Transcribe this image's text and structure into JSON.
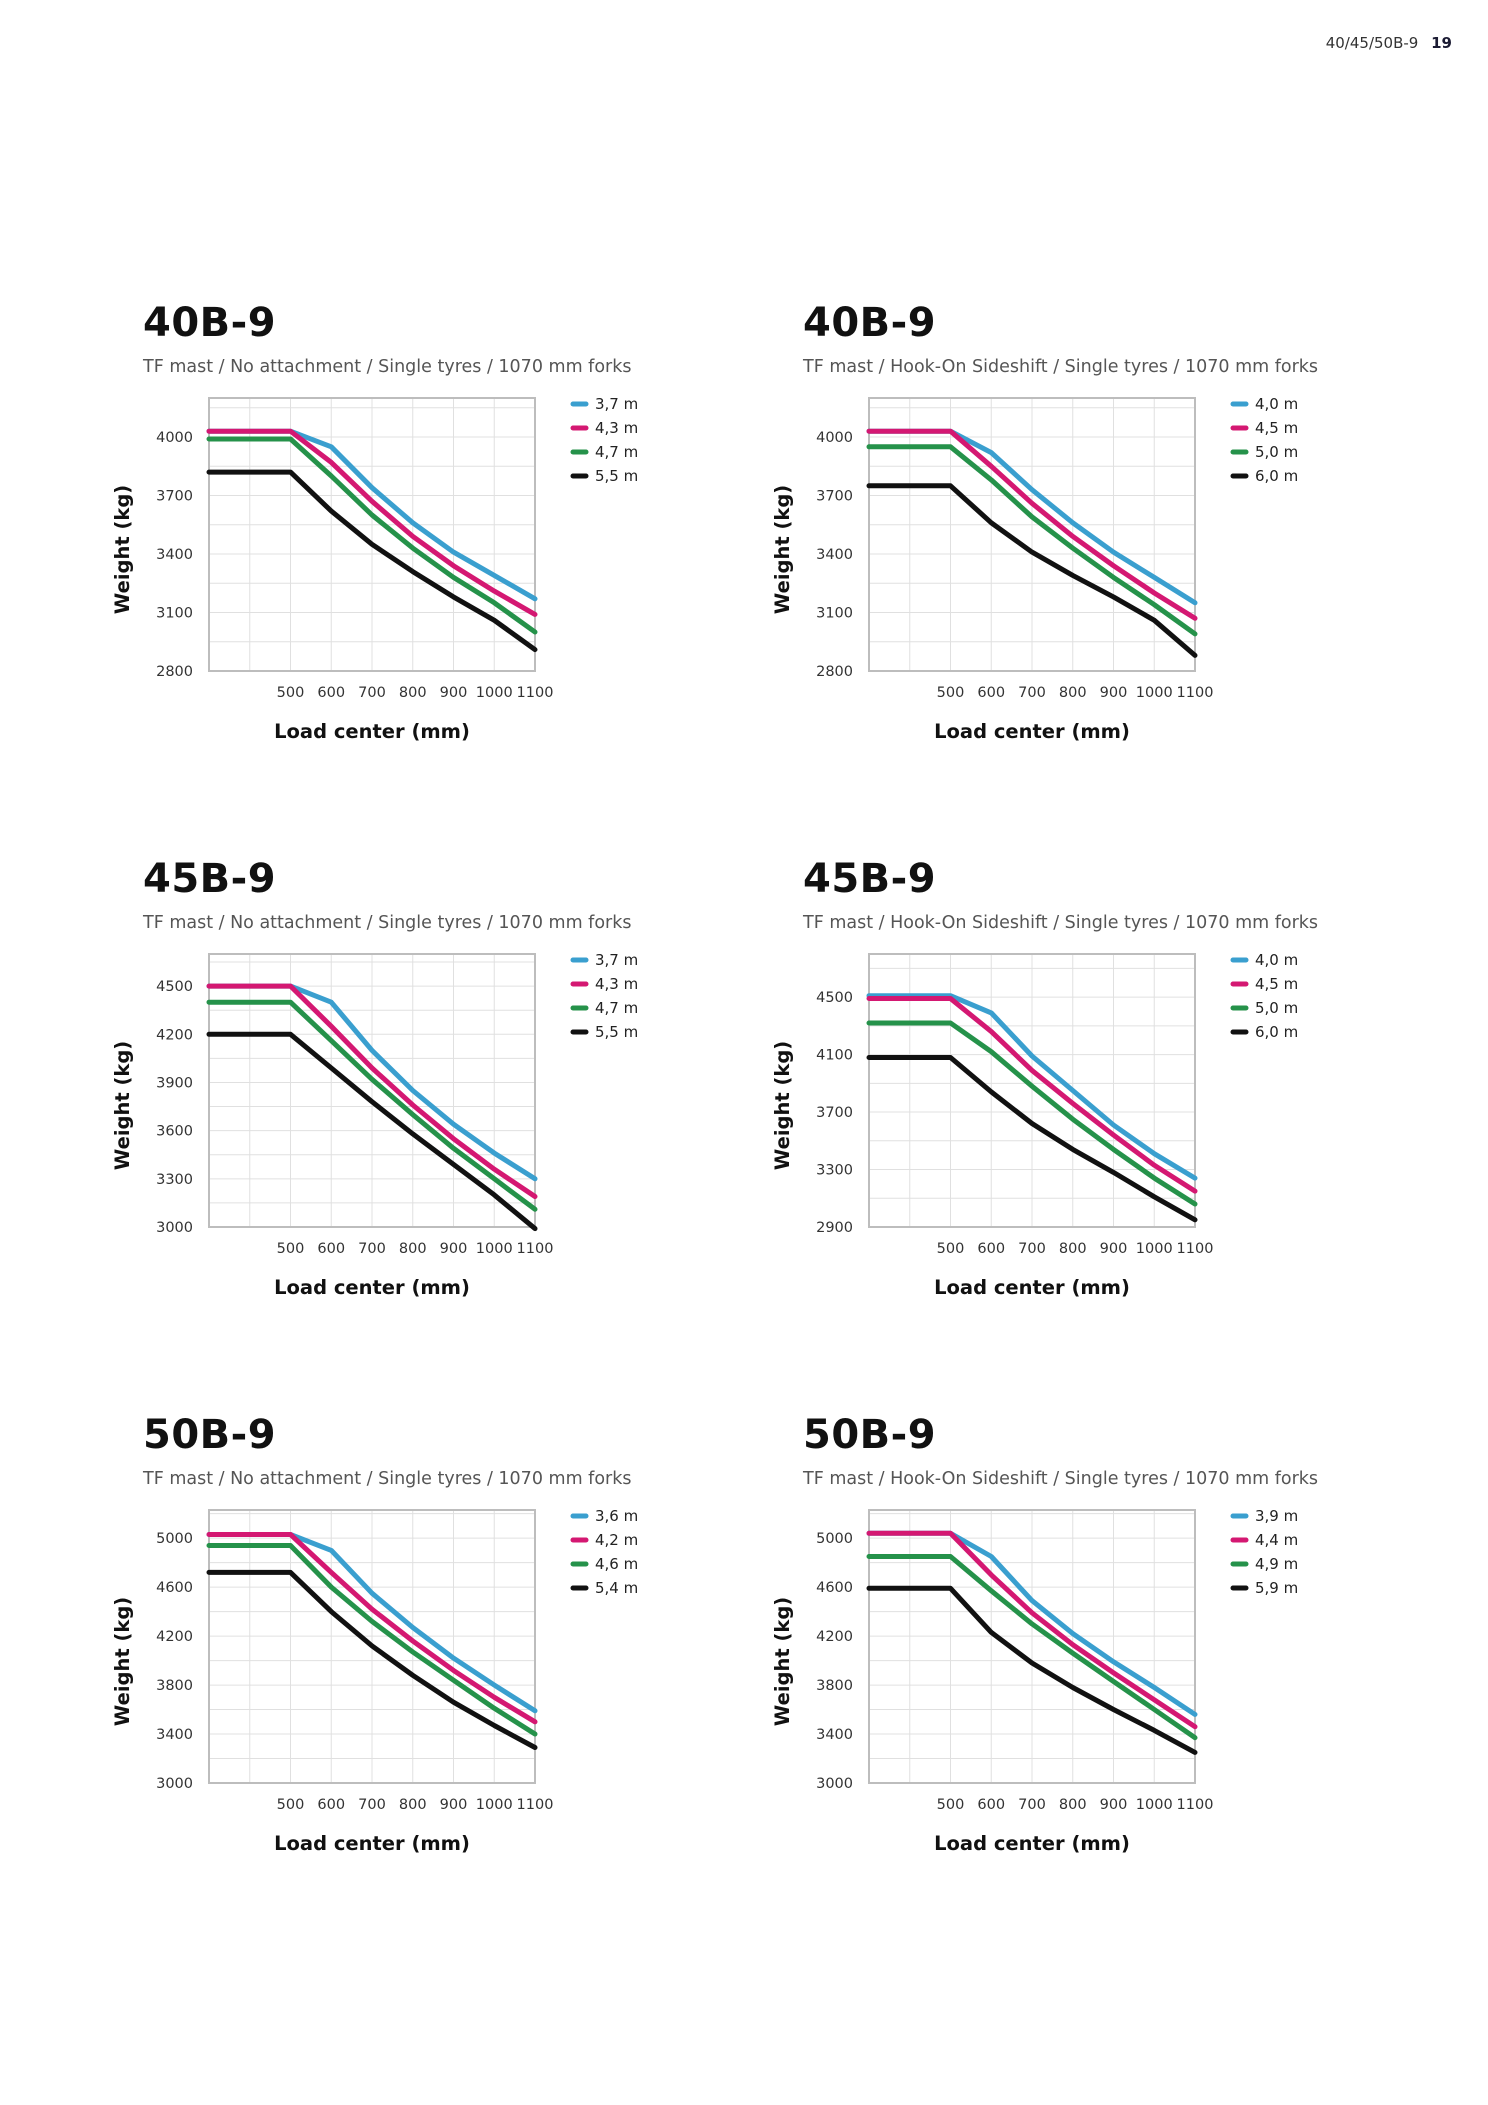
{
  "header": {
    "model_range": "40/45/50B-9",
    "page_number": "19"
  },
  "palette": {
    "blue": "#3a9fcf",
    "magenta": "#d41872",
    "green": "#25924a",
    "black": "#111111",
    "grid": "#e0e0e0",
    "frame": "#bdbdbd"
  },
  "chart_data": [
    {
      "type": "line",
      "title": "40B-9",
      "subtitle": "TF mast / No attachment / Single tyres / 1070 mm forks",
      "xlabel": "Load center (mm)",
      "ylabel": "Weight (kg)",
      "xticks": [
        500,
        600,
        700,
        800,
        900,
        1000,
        1100
      ],
      "yticks": [
        2800,
        3100,
        3400,
        3700,
        4000
      ],
      "ylim": [
        2800,
        4200
      ],
      "x": [
        300,
        500,
        600,
        700,
        800,
        900,
        1000,
        1100
      ],
      "series": [
        {
          "name": "3,7 m",
          "color": "#3a9fcf",
          "values": [
            4030,
            4030,
            3950,
            3740,
            3560,
            3410,
            3290,
            3170
          ]
        },
        {
          "name": "4,3 m",
          "color": "#d41872",
          "values": [
            4030,
            4030,
            3870,
            3670,
            3490,
            3340,
            3210,
            3090
          ]
        },
        {
          "name": "4,7 m",
          "color": "#25924a",
          "values": [
            3990,
            3990,
            3800,
            3600,
            3430,
            3280,
            3150,
            3000
          ]
        },
        {
          "name": "5,5 m",
          "color": "#111111",
          "values": [
            3820,
            3820,
            3620,
            3450,
            3310,
            3180,
            3060,
            2910
          ]
        }
      ]
    },
    {
      "type": "line",
      "title": "40B-9",
      "subtitle": "TF mast / Hook-On Sideshift / Single tyres / 1070 mm forks",
      "xlabel": "Load center (mm)",
      "ylabel": "Weight (kg)",
      "xticks": [
        500,
        600,
        700,
        800,
        900,
        1000,
        1100
      ],
      "yticks": [
        2800,
        3100,
        3400,
        3700,
        4000
      ],
      "ylim": [
        2800,
        4200
      ],
      "x": [
        300,
        500,
        600,
        700,
        800,
        900,
        1000,
        1100
      ],
      "series": [
        {
          "name": "4,0 m",
          "color": "#3a9fcf",
          "values": [
            4030,
            4030,
            3920,
            3730,
            3560,
            3410,
            3280,
            3150
          ]
        },
        {
          "name": "4,5 m",
          "color": "#d41872",
          "values": [
            4030,
            4030,
            3850,
            3660,
            3490,
            3340,
            3200,
            3070
          ]
        },
        {
          "name": "5,0 m",
          "color": "#25924a",
          "values": [
            3950,
            3950,
            3780,
            3590,
            3430,
            3280,
            3140,
            2990
          ]
        },
        {
          "name": "6,0 m",
          "color": "#111111",
          "values": [
            3750,
            3750,
            3560,
            3410,
            3290,
            3180,
            3060,
            2880
          ]
        }
      ]
    },
    {
      "type": "line",
      "title": "45B-9",
      "subtitle": "TF mast / No attachment / Single tyres / 1070 mm forks",
      "xlabel": "Load center (mm)",
      "ylabel": "Weight (kg)",
      "xticks": [
        500,
        600,
        700,
        800,
        900,
        1000,
        1100
      ],
      "yticks": [
        3000,
        3300,
        3600,
        3900,
        4200,
        4500
      ],
      "ylim": [
        3000,
        4700
      ],
      "x": [
        300,
        500,
        600,
        700,
        800,
        900,
        1000,
        1100
      ],
      "series": [
        {
          "name": "3,7 m",
          "color": "#3a9fcf",
          "values": [
            4500,
            4500,
            4400,
            4100,
            3850,
            3640,
            3460,
            3300
          ]
        },
        {
          "name": "4,3 m",
          "color": "#d41872",
          "values": [
            4500,
            4500,
            4250,
            3990,
            3760,
            3550,
            3360,
            3190
          ]
        },
        {
          "name": "4,7 m",
          "color": "#25924a",
          "values": [
            4400,
            4400,
            4160,
            3920,
            3700,
            3490,
            3300,
            3110
          ]
        },
        {
          "name": "5,5 m",
          "color": "#111111",
          "values": [
            4200,
            4200,
            3990,
            3780,
            3580,
            3390,
            3200,
            2990
          ]
        }
      ]
    },
    {
      "type": "line",
      "title": "45B-9",
      "subtitle": "TF mast / Hook-On Sideshift / Single tyres / 1070 mm forks",
      "xlabel": "Load center (mm)",
      "ylabel": "Weight (kg)",
      "xticks": [
        500,
        600,
        700,
        800,
        900,
        1000,
        1100
      ],
      "yticks": [
        2900,
        3300,
        3700,
        4100,
        4500
      ],
      "ylim": [
        2900,
        4800
      ],
      "x": [
        300,
        500,
        600,
        700,
        800,
        900,
        1000,
        1100
      ],
      "series": [
        {
          "name": "4,0 m",
          "color": "#3a9fcf",
          "values": [
            4510,
            4510,
            4390,
            4090,
            3850,
            3610,
            3410,
            3240
          ]
        },
        {
          "name": "4,5 m",
          "color": "#d41872",
          "values": [
            4490,
            4490,
            4260,
            3990,
            3760,
            3540,
            3330,
            3150
          ]
        },
        {
          "name": "5,0 m",
          "color": "#25924a",
          "values": [
            4320,
            4320,
            4120,
            3880,
            3650,
            3440,
            3240,
            3060
          ]
        },
        {
          "name": "6,0 m",
          "color": "#111111",
          "values": [
            4080,
            4080,
            3840,
            3620,
            3440,
            3280,
            3110,
            2950
          ]
        }
      ]
    },
    {
      "type": "line",
      "title": "50B-9",
      "subtitle": "TF mast / No attachment / Single tyres / 1070 mm forks",
      "xlabel": "Load center (mm)",
      "ylabel": "Weight (kg)",
      "xticks": [
        500,
        600,
        700,
        800,
        900,
        1000,
        1100
      ],
      "yticks": [
        3000,
        3400,
        3800,
        4200,
        4600,
        5000
      ],
      "ylim": [
        3000,
        5230
      ],
      "x": [
        300,
        500,
        600,
        700,
        800,
        900,
        1000,
        1100
      ],
      "series": [
        {
          "name": "3,6 m",
          "color": "#3a9fcf",
          "values": [
            5030,
            5030,
            4900,
            4550,
            4270,
            4020,
            3800,
            3590
          ]
        },
        {
          "name": "4,2 m",
          "color": "#d41872",
          "values": [
            5030,
            5030,
            4720,
            4420,
            4160,
            3920,
            3700,
            3500
          ]
        },
        {
          "name": "4,6 m",
          "color": "#25924a",
          "values": [
            4940,
            4940,
            4600,
            4320,
            4070,
            3840,
            3610,
            3400
          ]
        },
        {
          "name": "5,4 m",
          "color": "#111111",
          "values": [
            4720,
            4720,
            4400,
            4120,
            3880,
            3660,
            3470,
            3290
          ]
        }
      ]
    },
    {
      "type": "line",
      "title": "50B-9",
      "subtitle": "TF mast / Hook-On Sideshift / Single tyres / 1070 mm forks",
      "xlabel": "Load center (mm)",
      "ylabel": "Weight (kg)",
      "xticks": [
        500,
        600,
        700,
        800,
        900,
        1000,
        1100
      ],
      "yticks": [
        3000,
        3400,
        3800,
        4200,
        4600,
        5000
      ],
      "ylim": [
        3000,
        5230
      ],
      "x": [
        300,
        500,
        600,
        700,
        800,
        900,
        1000,
        1100
      ],
      "series": [
        {
          "name": "3,9 m",
          "color": "#3a9fcf",
          "values": [
            5040,
            5040,
            4850,
            4490,
            4220,
            3990,
            3780,
            3560
          ]
        },
        {
          "name": "4,4 m",
          "color": "#d41872",
          "values": [
            5040,
            5040,
            4700,
            4390,
            4130,
            3900,
            3680,
            3460
          ]
        },
        {
          "name": "4,9 m",
          "color": "#25924a",
          "values": [
            4850,
            4850,
            4570,
            4300,
            4060,
            3830,
            3600,
            3370
          ]
        },
        {
          "name": "5,9 m",
          "color": "#111111",
          "values": [
            4590,
            4590,
            4230,
            3980,
            3780,
            3600,
            3430,
            3250
          ]
        }
      ]
    }
  ]
}
